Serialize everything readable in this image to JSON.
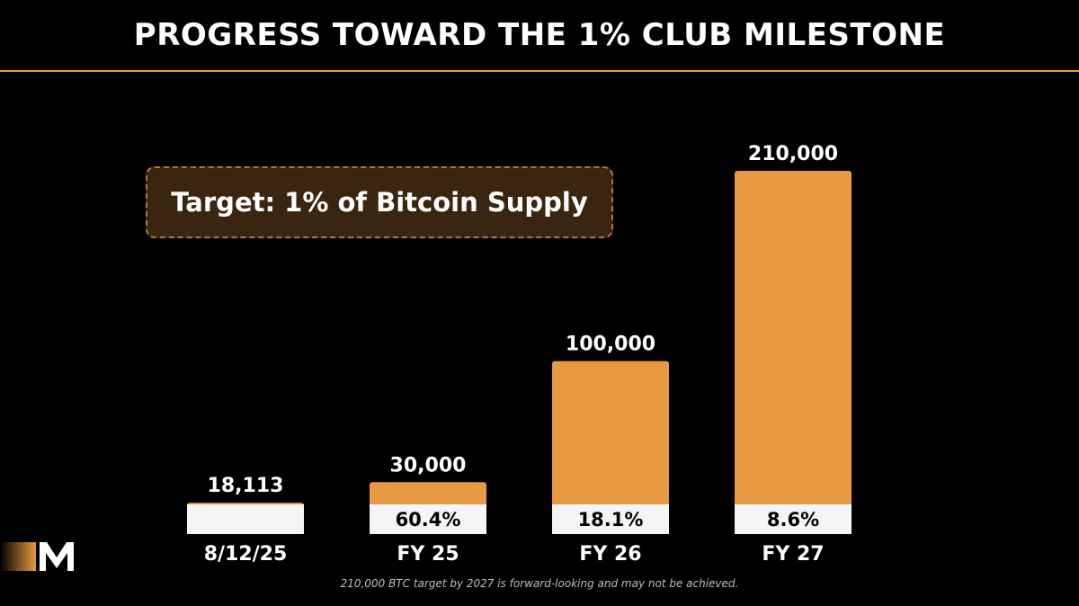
{
  "title": "PROGRESS TOWARD THE 1% CLUB MILESTONE",
  "target_label": "Target: 1% of Bitcoin Supply",
  "footnote": "210,000 BTC target by 2027 is forward-looking and may not be achieved.",
  "colors": {
    "background": "#000000",
    "accent": "#e89a42",
    "bar_base": "#f5f5f5",
    "target_box_bg": "#3a2610",
    "target_box_border": "#b3763a"
  },
  "chart_data": {
    "type": "bar",
    "title": "PROGRESS TOWARD THE 1% CLUB MILESTONE",
    "categories": [
      "8/12/25",
      "FY 25",
      "FY 26",
      "FY 27"
    ],
    "values": [
      18113,
      30000,
      100000,
      210000
    ],
    "value_labels": [
      "18,113",
      "30,000",
      "100,000",
      "210,000"
    ],
    "progress_pct_labels": [
      "",
      "60.4%",
      "18.1%",
      "8.6%"
    ],
    "progress_fraction": [
      1.0,
      0.604,
      0.181,
      0.086
    ],
    "current_holdings": 18113,
    "xlabel": "",
    "ylabel": "",
    "ylim": [
      0,
      210000
    ],
    "grid": false,
    "legend": "none"
  }
}
